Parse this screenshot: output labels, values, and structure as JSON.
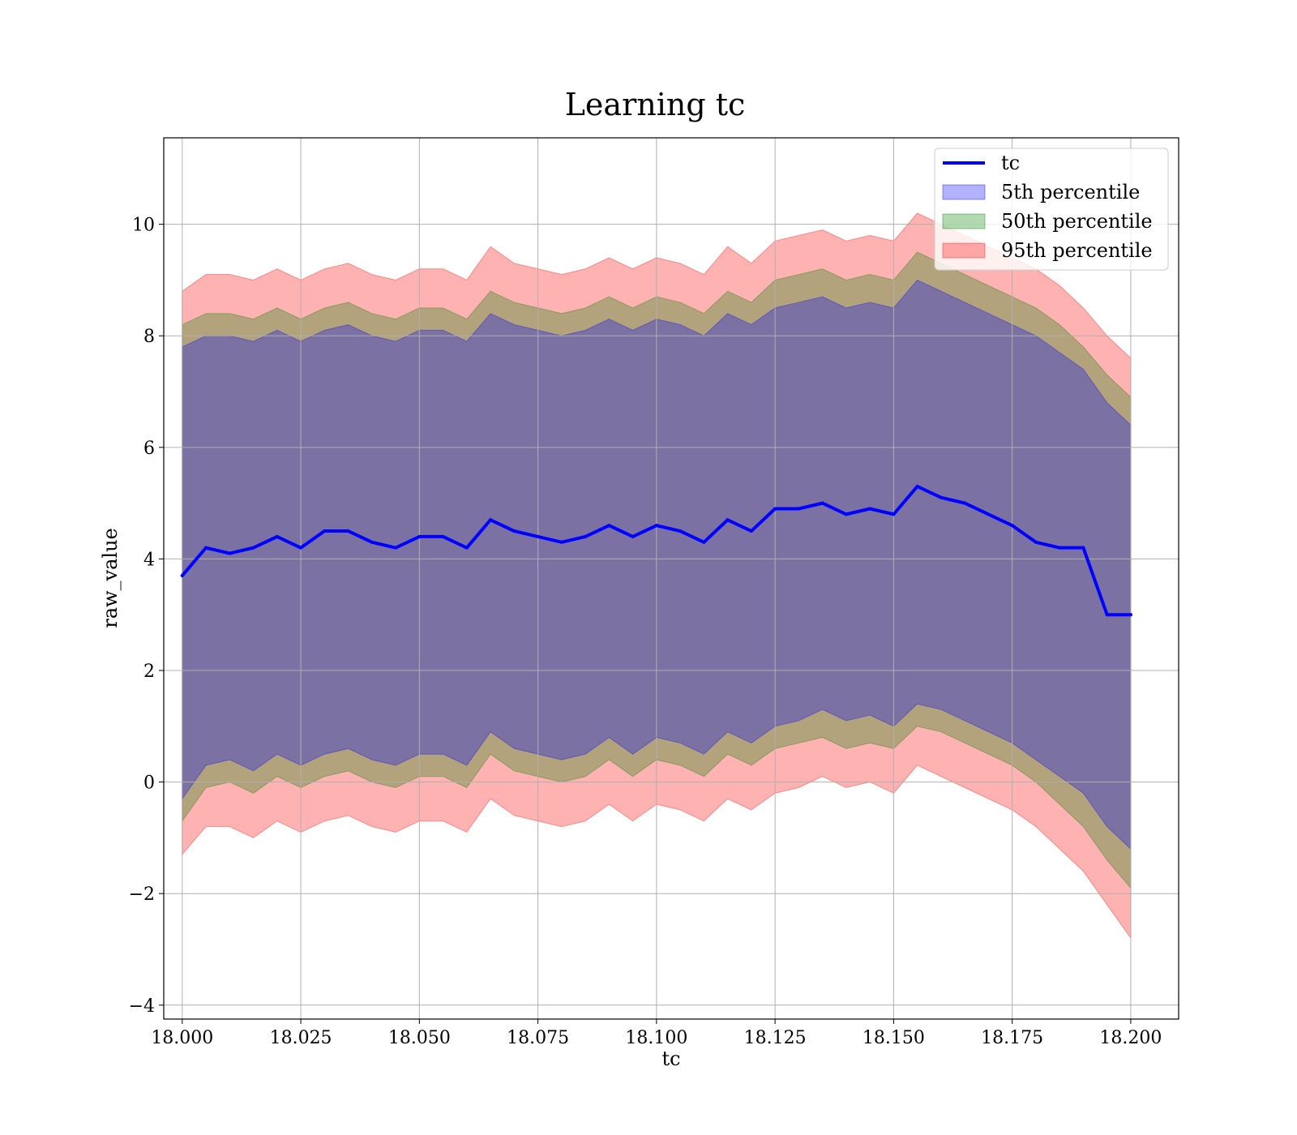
{
  "chart_data": {
    "type": "line",
    "title": "Learning tc",
    "xlabel": "tc",
    "ylabel": "raw_value",
    "xlim": [
      17.9961,
      18.2101
    ],
    "ylim": [
      -4.25,
      11.55
    ],
    "xticks": [
      18.0,
      18.025,
      18.05,
      18.075,
      18.1,
      18.125,
      18.15,
      18.175,
      18.2
    ],
    "xtick_labels": [
      "18.000",
      "18.025",
      "18.050",
      "18.075",
      "18.100",
      "18.125",
      "18.150",
      "18.175",
      "18.200"
    ],
    "yticks": [
      -4,
      -2,
      0,
      2,
      4,
      6,
      8,
      10
    ],
    "ytick_labels": [
      "−4",
      "−2",
      "0",
      "2",
      "4",
      "6",
      "8",
      "10"
    ],
    "grid": true,
    "legend_position": "top-right",
    "x": [
      18.0,
      18.005,
      18.01,
      18.015,
      18.02,
      18.025,
      18.03,
      18.035,
      18.04,
      18.045,
      18.05,
      18.055,
      18.06,
      18.065,
      18.07,
      18.075,
      18.08,
      18.085,
      18.09,
      18.095,
      18.1,
      18.105,
      18.11,
      18.115,
      18.12,
      18.125,
      18.13,
      18.135,
      18.14,
      18.145,
      18.15,
      18.155,
      18.16,
      18.165,
      18.17,
      18.175,
      18.18,
      18.185,
      18.19,
      18.195,
      18.2
    ],
    "series": [
      {
        "name": "tc",
        "kind": "line",
        "color": "#0000ff",
        "values": [
          3.7,
          4.2,
          4.1,
          4.2,
          4.4,
          4.2,
          4.5,
          4.5,
          4.3,
          4.2,
          4.4,
          4.4,
          4.2,
          4.7,
          4.5,
          4.4,
          4.3,
          4.4,
          4.6,
          4.4,
          4.6,
          4.5,
          4.3,
          4.7,
          4.5,
          4.9,
          4.9,
          5.0,
          4.8,
          4.9,
          4.8,
          5.3,
          5.1,
          5.0,
          4.8,
          4.6,
          4.3,
          4.2,
          4.2,
          3.0,
          3.0
        ]
      },
      {
        "name": "5th percentile",
        "kind": "band",
        "color": "#0000ff",
        "upper": [
          7.8,
          8.0,
          8.0,
          7.9,
          8.1,
          7.9,
          8.1,
          8.2,
          8.0,
          7.9,
          8.1,
          8.1,
          7.9,
          8.4,
          8.2,
          8.1,
          8.0,
          8.1,
          8.3,
          8.1,
          8.3,
          8.2,
          8.0,
          8.4,
          8.2,
          8.5,
          8.6,
          8.7,
          8.5,
          8.6,
          8.5,
          9.0,
          8.8,
          8.6,
          8.4,
          8.2,
          8.0,
          7.7,
          7.4,
          6.8,
          6.4
        ],
        "lower": [
          -0.3,
          0.3,
          0.4,
          0.2,
          0.5,
          0.3,
          0.5,
          0.6,
          0.4,
          0.3,
          0.5,
          0.5,
          0.3,
          0.9,
          0.6,
          0.5,
          0.4,
          0.5,
          0.8,
          0.5,
          0.8,
          0.7,
          0.5,
          0.9,
          0.7,
          1.0,
          1.1,
          1.3,
          1.1,
          1.2,
          1.0,
          1.4,
          1.3,
          1.1,
          0.9,
          0.7,
          0.4,
          0.1,
          -0.2,
          -0.8,
          -1.2
        ]
      },
      {
        "name": "50th percentile",
        "kind": "band",
        "color": "#008000",
        "upper": [
          8.2,
          8.4,
          8.4,
          8.3,
          8.5,
          8.3,
          8.5,
          8.6,
          8.4,
          8.3,
          8.5,
          8.5,
          8.3,
          8.8,
          8.6,
          8.5,
          8.4,
          8.5,
          8.7,
          8.5,
          8.7,
          8.6,
          8.4,
          8.8,
          8.6,
          9.0,
          9.1,
          9.2,
          9.0,
          9.1,
          9.0,
          9.5,
          9.3,
          9.1,
          8.9,
          8.7,
          8.5,
          8.2,
          7.8,
          7.3,
          6.9
        ],
        "lower": [
          -0.7,
          -0.1,
          0.0,
          -0.2,
          0.1,
          -0.1,
          0.1,
          0.2,
          0.0,
          -0.1,
          0.1,
          0.1,
          -0.1,
          0.5,
          0.2,
          0.1,
          0.0,
          0.1,
          0.4,
          0.1,
          0.4,
          0.3,
          0.1,
          0.5,
          0.3,
          0.6,
          0.7,
          0.8,
          0.6,
          0.7,
          0.6,
          1.0,
          0.9,
          0.7,
          0.5,
          0.3,
          0.0,
          -0.4,
          -0.8,
          -1.4,
          -1.9
        ]
      },
      {
        "name": "95th percentile",
        "kind": "band",
        "color": "#ff0000",
        "upper": [
          8.8,
          9.1,
          9.1,
          9.0,
          9.2,
          9.0,
          9.2,
          9.3,
          9.1,
          9.0,
          9.2,
          9.2,
          9.0,
          9.6,
          9.3,
          9.2,
          9.1,
          9.2,
          9.4,
          9.2,
          9.4,
          9.3,
          9.1,
          9.6,
          9.3,
          9.7,
          9.8,
          9.9,
          9.7,
          9.8,
          9.7,
          10.2,
          10.0,
          9.8,
          9.6,
          9.4,
          9.2,
          8.9,
          8.5,
          8.0,
          7.6
        ],
        "lower": [
          -1.3,
          -0.8,
          -0.8,
          -1.0,
          -0.7,
          -0.9,
          -0.7,
          -0.6,
          -0.8,
          -0.9,
          -0.7,
          -0.7,
          -0.9,
          -0.3,
          -0.6,
          -0.7,
          -0.8,
          -0.7,
          -0.4,
          -0.7,
          -0.4,
          -0.5,
          -0.7,
          -0.3,
          -0.5,
          -0.2,
          -0.1,
          0.1,
          -0.1,
          0.0,
          -0.2,
          0.3,
          0.1,
          -0.1,
          -0.3,
          -0.5,
          -0.8,
          -1.2,
          -1.6,
          -2.2,
          -2.8
        ]
      }
    ]
  }
}
